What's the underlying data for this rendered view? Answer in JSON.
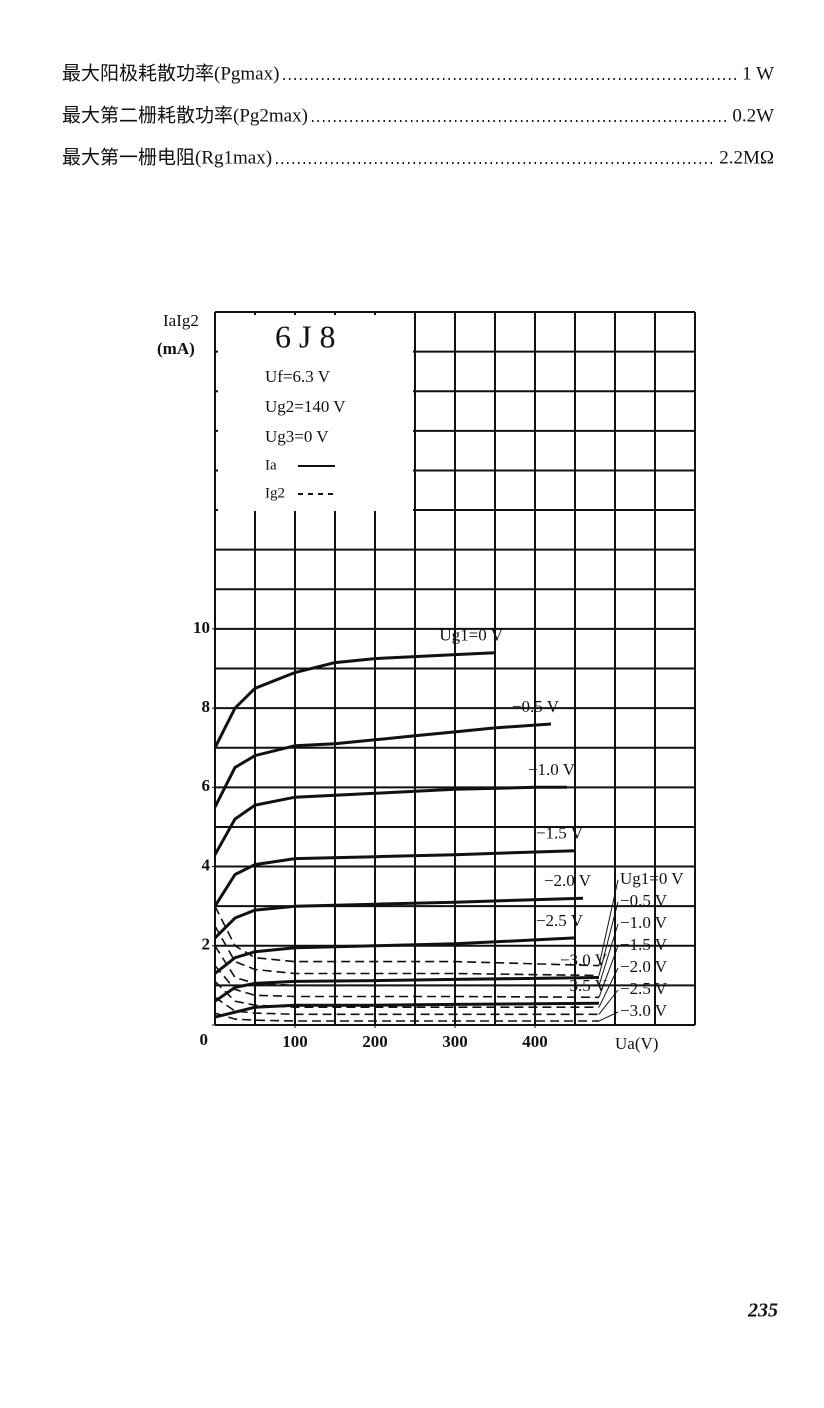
{
  "specs": [
    {
      "label": "最大阳极耗散功率(Pgmax)",
      "value": "1 W"
    },
    {
      "label": "最大第二栅耗散功率(Pg2max)",
      "value": "0.2W"
    },
    {
      "label": "最大第一栅电阻(Rg1max)",
      "value": "2.2MΩ"
    }
  ],
  "page_number": "235",
  "chart_data": {
    "type": "line",
    "title": "6J8",
    "conditions": [
      "Uf=6.3 V",
      "Ug2=140 V",
      "Ug3=0 V"
    ],
    "legend": [
      {
        "label": "Ia",
        "line_style": "solid"
      },
      {
        "label": "Ig2",
        "line_style": "dashed"
      }
    ],
    "y_label": [
      "IaIg2",
      "(mA)"
    ],
    "x_label": "Ua(V)",
    "xlim": [
      0,
      600
    ],
    "ylim": [
      0,
      18
    ],
    "xticks": [
      100,
      200,
      300,
      400
    ],
    "yticks": [
      0,
      2,
      4,
      6,
      8,
      10
    ],
    "xgrid": [
      0,
      50,
      100,
      150,
      200,
      250,
      300,
      350,
      400,
      450,
      500,
      550,
      600
    ],
    "ygrid": [
      0,
      1,
      2,
      3,
      4,
      5,
      6,
      7,
      8,
      9,
      10,
      11,
      12,
      13,
      14,
      15,
      16,
      17,
      18
    ],
    "color": "#111111",
    "series": [
      {
        "name": "Ug1=0 V",
        "line_style": "solid",
        "x": [
          0,
          25,
          50,
          100,
          150,
          200,
          250,
          300,
          350
        ],
        "values": [
          7.0,
          8.0,
          8.5,
          8.9,
          9.15,
          9.25,
          9.3,
          9.35,
          9.4
        ]
      },
      {
        "name": "−0.5 V",
        "line_style": "solid",
        "x": [
          0,
          25,
          50,
          100,
          150,
          200,
          250,
          300,
          350,
          420
        ],
        "values": [
          5.5,
          6.5,
          6.8,
          7.05,
          7.1,
          7.2,
          7.3,
          7.4,
          7.5,
          7.6
        ]
      },
      {
        "name": "−1.0 V",
        "line_style": "solid",
        "x": [
          0,
          25,
          50,
          100,
          150,
          200,
          300,
          400,
          440
        ],
        "values": [
          4.3,
          5.2,
          5.55,
          5.75,
          5.8,
          5.85,
          5.95,
          6.0,
          6.0
        ]
      },
      {
        "name": "−1.5 V",
        "line_style": "solid",
        "x": [
          0,
          25,
          50,
          100,
          200,
          300,
          450
        ],
        "values": [
          3.0,
          3.8,
          4.05,
          4.2,
          4.25,
          4.3,
          4.4
        ]
      },
      {
        "name": "−2.0 V",
        "line_style": "solid",
        "x": [
          0,
          25,
          50,
          100,
          200,
          300,
          460
        ],
        "values": [
          2.2,
          2.7,
          2.9,
          3.0,
          3.05,
          3.1,
          3.2
        ]
      },
      {
        "name": "−2.5 V",
        "line_style": "solid",
        "x": [
          0,
          25,
          50,
          100,
          200,
          300,
          450
        ],
        "values": [
          1.3,
          1.7,
          1.85,
          1.95,
          2.0,
          2.05,
          2.2
        ]
      },
      {
        "name": "−3.0 V",
        "line_style": "solid",
        "x": [
          0,
          25,
          50,
          100,
          200,
          300,
          480
        ],
        "values": [
          0.6,
          0.95,
          1.05,
          1.1,
          1.12,
          1.15,
          1.2
        ]
      },
      {
        "name": "−3.5 V",
        "line_style": "solid",
        "x": [
          0,
          50,
          100,
          200,
          300,
          480
        ],
        "values": [
          0.2,
          0.45,
          0.5,
          0.5,
          0.52,
          0.55
        ]
      },
      {
        "name": "Ug1=0 V",
        "line_style": "dashed",
        "x": [
          0,
          25,
          50,
          100,
          300,
          480
        ],
        "values": [
          3.0,
          2.0,
          1.7,
          1.6,
          1.6,
          1.5
        ]
      },
      {
        "name": "−0.5 V",
        "line_style": "dashed",
        "x": [
          0,
          25,
          50,
          100,
          300,
          480
        ],
        "values": [
          2.5,
          1.6,
          1.4,
          1.3,
          1.3,
          1.25
        ]
      },
      {
        "name": "−1.0 V",
        "line_style": "dashed",
        "x": [
          0,
          25,
          50,
          100,
          300,
          480
        ],
        "values": [
          2.0,
          1.2,
          1.05,
          1.0,
          1.0,
          1.0
        ]
      },
      {
        "name": "−1.5 V",
        "line_style": "dashed",
        "x": [
          0,
          25,
          50,
          100,
          300,
          480
        ],
        "values": [
          1.5,
          0.9,
          0.75,
          0.72,
          0.72,
          0.7
        ]
      },
      {
        "name": "−2.0 V",
        "line_style": "dashed",
        "x": [
          0,
          25,
          50,
          100,
          300,
          480
        ],
        "values": [
          1.1,
          0.6,
          0.5,
          0.45,
          0.45,
          0.45
        ]
      },
      {
        "name": "−2.5 V",
        "line_style": "dashed",
        "x": [
          0,
          25,
          50,
          100,
          300,
          480
        ],
        "values": [
          0.7,
          0.35,
          0.3,
          0.27,
          0.27,
          0.27
        ]
      },
      {
        "name": "−3.0 V",
        "line_style": "dashed",
        "x": [
          0,
          25,
          50,
          100,
          300,
          480
        ],
        "values": [
          0.3,
          0.15,
          0.12,
          0.1,
          0.1,
          0.1
        ]
      }
    ]
  }
}
